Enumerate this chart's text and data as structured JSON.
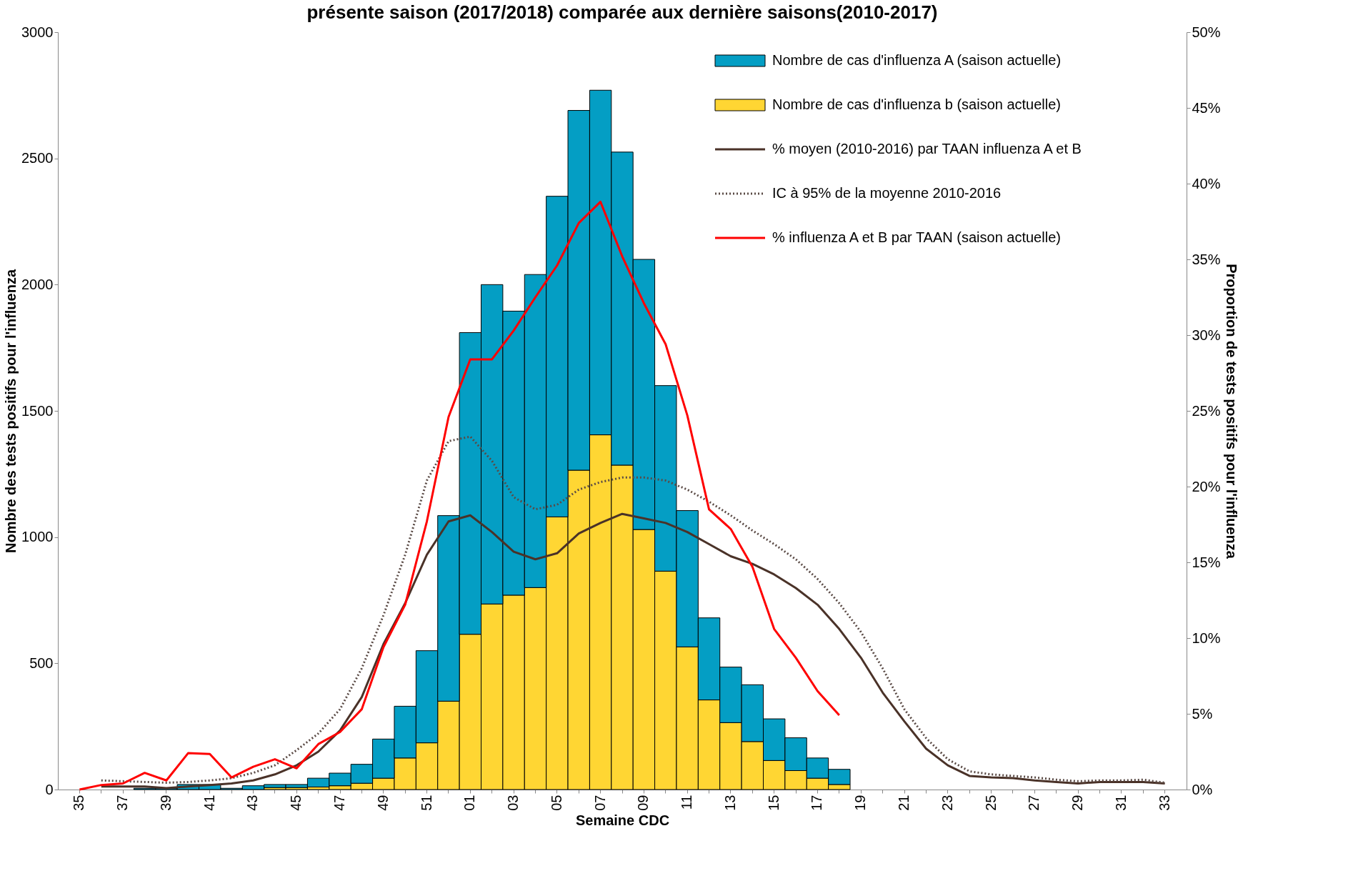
{
  "chart_data": {
    "type": "bar",
    "stacked": true,
    "title": "présente saison (2017/2018) comparée aux dernière saisons(2010-2017)",
    "xlabel": "Semaine CDC",
    "ylabel": "Nombre  des tests positifs pour l'influenza",
    "y2label": "Proportion de tests positifs pour l'influenza",
    "categories": [
      "35",
      null,
      "37",
      null,
      "39",
      null,
      "41",
      null,
      "43",
      null,
      "45",
      null,
      "47",
      null,
      "49",
      null,
      "51",
      null,
      "01",
      null,
      "03",
      null,
      "05",
      null,
      "07",
      null,
      "09",
      null,
      "11",
      null,
      "13",
      null,
      "15",
      null,
      "17",
      null,
      "19",
      null,
      "21",
      null,
      "23",
      null,
      "25",
      null,
      "27",
      null,
      "29",
      null,
      "31",
      null,
      "33"
    ],
    "series": [
      {
        "name": "Nombre de cas d'influenza b (saison actuelle)",
        "color": "#ffd633",
        "values": [
          0,
          0,
          0,
          0,
          0,
          0,
          0,
          0,
          0,
          8,
          8,
          10,
          15,
          25,
          45,
          125,
          185,
          350,
          615,
          735,
          770,
          800,
          1080,
          1265,
          1405,
          1285,
          1030,
          865,
          565,
          355,
          265,
          190,
          115,
          75,
          45,
          20,
          null,
          null,
          null,
          null,
          null,
          null,
          null,
          null,
          null,
          null,
          null,
          null,
          null,
          null,
          null
        ]
      },
      {
        "name": "Nombre de cas d'influenza A (saison actuelle)",
        "color": "#049ec4",
        "values": [
          0,
          0,
          0,
          5,
          5,
          20,
          20,
          5,
          15,
          12,
          12,
          35,
          50,
          75,
          155,
          205,
          365,
          735,
          1195,
          1265,
          1125,
          1240,
          1270,
          1425,
          1365,
          1240,
          1070,
          735,
          540,
          325,
          220,
          225,
          165,
          130,
          80,
          60,
          null,
          null,
          null,
          null,
          null,
          null,
          null,
          null,
          null,
          null,
          null,
          null,
          null,
          null,
          null
        ]
      },
      {
        "name": "% moyen (2010-2016) par TAAN influenza A et B",
        "type": "line",
        "axis": "y2",
        "color": "#4a3228",
        "line_style": "solid",
        "values": [
          null,
          0.2,
          0.2,
          0.2,
          0.1,
          0.2,
          0.3,
          0.4,
          0.6,
          1.0,
          1.6,
          2.5,
          3.9,
          6.1,
          9.6,
          12.3,
          15.5,
          17.7,
          18.1,
          17.0,
          15.7,
          15.2,
          15.6,
          16.9,
          17.6,
          18.2,
          17.9,
          17.6,
          17.0,
          16.2,
          15.4,
          14.9,
          14.2,
          13.3,
          12.2,
          10.6,
          8.7,
          6.4,
          4.5,
          2.7,
          1.6,
          0.9,
          0.8,
          0.75,
          0.6,
          0.5,
          0.4,
          0.5,
          0.5,
          0.5,
          0.4
        ]
      },
      {
        "name": "IC à 95% de la moyenne 2010-2016",
        "type": "line",
        "axis": "y2",
        "color": "#5a4a45",
        "line_style": "dotted",
        "values": [
          null,
          0.6,
          0.55,
          0.5,
          0.45,
          0.5,
          0.6,
          0.75,
          1.1,
          1.6,
          2.6,
          3.7,
          5.3,
          8.0,
          11.5,
          15.5,
          20.4,
          23.0,
          23.3,
          21.7,
          19.3,
          18.5,
          18.8,
          19.8,
          20.3,
          20.6,
          20.6,
          20.4,
          19.8,
          19.0,
          18.1,
          17.1,
          16.2,
          15.2,
          13.9,
          12.3,
          10.4,
          8.0,
          5.3,
          3.4,
          2.0,
          1.2,
          1.0,
          0.9,
          0.8,
          0.65,
          0.55,
          0.6,
          0.6,
          0.65,
          0.45
        ]
      },
      {
        "name": "% influenza A et B par TAAN (saison actuelle)",
        "type": "line",
        "axis": "y2",
        "color": "#ff0000",
        "line_style": "solid",
        "values": [
          0,
          0.3,
          0.4,
          1.1,
          0.6,
          2.4,
          2.35,
          0.8,
          1.5,
          2.0,
          1.4,
          3.0,
          3.8,
          5.3,
          9.4,
          12.2,
          17.7,
          24.6,
          28.4,
          28.4,
          30.3,
          32.5,
          34.6,
          37.4,
          38.8,
          35.2,
          32.1,
          29.4,
          24.7,
          18.5,
          17.2,
          14.7,
          10.6,
          8.7,
          6.5,
          4.9,
          null,
          null,
          null,
          null,
          null,
          null,
          null,
          null,
          null,
          null,
          null,
          null,
          null,
          null,
          null
        ]
      }
    ],
    "ylim": [
      0,
      3000
    ],
    "yticks": [
      0,
      500,
      1000,
      1500,
      2000,
      2500,
      3000
    ],
    "y2lim": [
      0,
      50
    ],
    "y2ticks": [
      {
        "value": 0,
        "label": "0%"
      },
      {
        "value": 5,
        "label": "5%"
      },
      {
        "value": 10,
        "label": "10%"
      },
      {
        "value": 15,
        "label": "15%"
      },
      {
        "value": 20,
        "label": "20%"
      },
      {
        "value": 25,
        "label": "25%"
      },
      {
        "value": 30,
        "label": "30%"
      },
      {
        "value": 35,
        "label": "35%"
      },
      {
        "value": 40,
        "label": "40%"
      },
      {
        "value": 45,
        "label": "45%"
      },
      {
        "value": 50,
        "label": "50%"
      }
    ],
    "grid": false,
    "legend": "top right"
  }
}
